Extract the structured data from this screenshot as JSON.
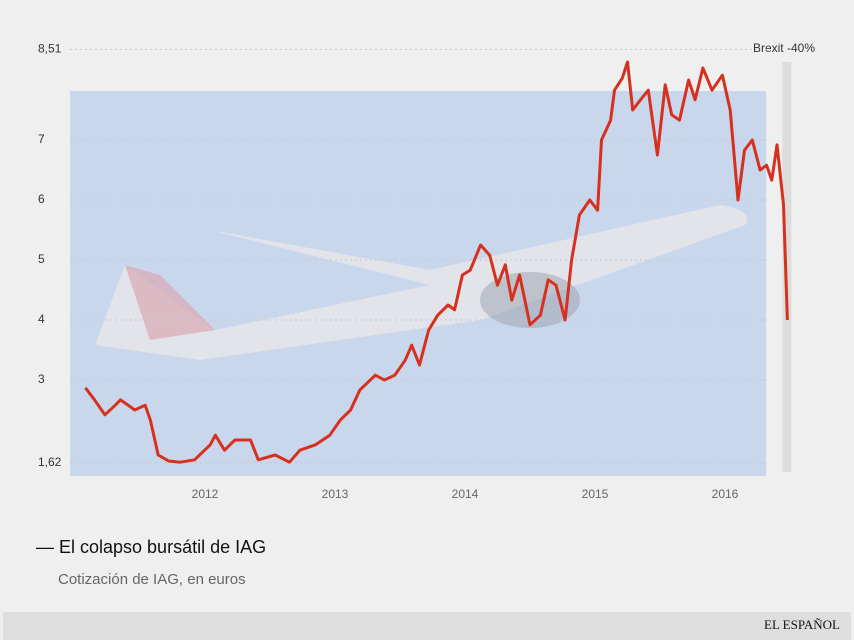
{
  "chart_data": {
    "type": "line",
    "title": "— El colapso bursátil de IAG",
    "subtitle": "Cotización de IAG, en euros",
    "source": "EL ESPAÑOL",
    "annotation": "Brexit -40%",
    "xlim": [
      2011,
      2016.5
    ],
    "xticks": [
      2012,
      2013,
      2014,
      2015,
      2016
    ],
    "ylim": [
      1.62,
      8.51
    ],
    "yticks": [
      {
        "value": 1.62,
        "label": "1,62"
      },
      3,
      4,
      5,
      6,
      7,
      {
        "value": 8.51,
        "label": "8,51"
      }
    ],
    "grid": true,
    "x": [
      2011.08,
      2011.15,
      2011.23,
      2011.31,
      2011.35,
      2011.46,
      2011.54,
      2011.58,
      2011.64,
      2011.72,
      2011.81,
      2011.92,
      2012.04,
      2012.08,
      2012.15,
      2012.23,
      2012.35,
      2012.41,
      2012.54,
      2012.65,
      2012.73,
      2012.85,
      2012.96,
      2013.04,
      2013.12,
      2013.19,
      2013.31,
      2013.38,
      2013.46,
      2013.54,
      2013.59,
      2013.65,
      2013.72,
      2013.79,
      2013.87,
      2013.92,
      2013.98,
      2014.04,
      2014.12,
      2014.19,
      2014.25,
      2014.31,
      2014.36,
      2014.42,
      2014.5,
      2014.58,
      2014.64,
      2014.7,
      2014.77,
      2014.82,
      2014.88,
      2014.96,
      2015.02,
      2015.05,
      2015.12,
      2015.15,
      2015.21,
      2015.25,
      2015.29,
      2015.35,
      2015.41,
      2015.48,
      2015.54,
      2015.59,
      2015.65,
      2015.72,
      2015.77,
      2015.83,
      2015.9,
      2015.98,
      2016.04,
      2016.1,
      2016.15,
      2016.21,
      2016.27,
      2016.32,
      2016.36,
      2016.4,
      2016.45,
      2016.48
    ],
    "series": [
      {
        "color": "#d6311f",
        "values": [
          2.87,
          2.67,
          2.42,
          2.58,
          2.67,
          2.5,
          2.58,
          2.33,
          1.75,
          1.65,
          1.63,
          1.67,
          1.92,
          2.08,
          1.83,
          2.0,
          2.0,
          1.67,
          1.75,
          1.63,
          1.83,
          1.92,
          2.08,
          2.33,
          2.5,
          2.83,
          3.08,
          3.0,
          3.08,
          3.33,
          3.58,
          3.25,
          3.83,
          4.08,
          4.25,
          4.17,
          4.75,
          4.83,
          5.25,
          5.08,
          4.58,
          4.92,
          4.33,
          4.75,
          3.92,
          4.08,
          4.67,
          4.58,
          4.0,
          5.0,
          5.75,
          6.0,
          5.83,
          7.0,
          7.33,
          7.83,
          8.03,
          8.3,
          7.5,
          7.67,
          7.83,
          6.75,
          7.92,
          7.42,
          7.33,
          8.0,
          7.67,
          8.2,
          7.83,
          8.08,
          7.5,
          6.0,
          6.83,
          7.0,
          6.5,
          6.58,
          6.33,
          6.92,
          5.92,
          4.0
        ]
      }
    ]
  }
}
